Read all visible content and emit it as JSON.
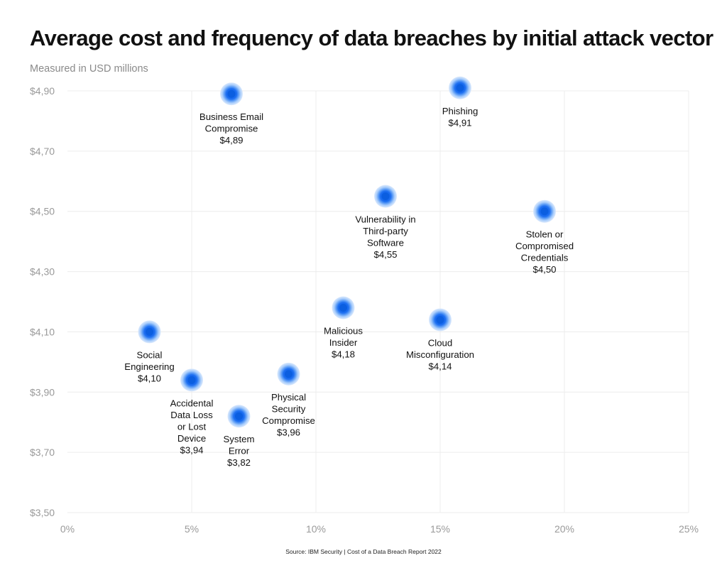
{
  "chart_data": {
    "type": "scatter",
    "title": "Average cost and frequency of data breaches by initial attack vector",
    "subtitle": "Measured in USD millions",
    "source": "Source: IBM Security | Cost of a Data Breach Report 2022",
    "xlim": [
      0,
      25
    ],
    "ylim": [
      3.5,
      4.9
    ],
    "x_ticks": [
      0,
      5,
      10,
      15,
      20,
      25
    ],
    "x_tick_labels": [
      "0%",
      "5%",
      "10%",
      "15%",
      "20%",
      "25%"
    ],
    "y_ticks": [
      3.5,
      3.7,
      3.9,
      4.1,
      4.3,
      4.5,
      4.7,
      4.9
    ],
    "y_tick_labels": [
      "$3,50",
      "$3,70",
      "$3,90",
      "$4,10",
      "$4,30",
      "$4,50",
      "$4,70",
      "$4,90"
    ],
    "grid": true,
    "marker_color": "#1a73e8",
    "points": [
      {
        "label": [
          "Business Email",
          "Compromise",
          "$4,89"
        ],
        "x": 6.6,
        "y": 4.89
      },
      {
        "label": [
          "Phishing",
          "$4,91"
        ],
        "x": 15.8,
        "y": 4.91
      },
      {
        "label": [
          "Vulnerability in",
          "Third-party",
          "Software",
          "$4,55"
        ],
        "x": 12.8,
        "y": 4.55
      },
      {
        "label": [
          "Stolen or",
          "Compromised",
          "Credentials",
          "$4,50"
        ],
        "x": 19.2,
        "y": 4.5
      },
      {
        "label": [
          "Malicious",
          "Insider",
          "$4,18"
        ],
        "x": 11.1,
        "y": 4.18
      },
      {
        "label": [
          "Cloud",
          "Misconfiguration",
          "$4,14"
        ],
        "x": 15.0,
        "y": 4.14
      },
      {
        "label": [
          "Social",
          "Engineering",
          "$4,10"
        ],
        "x": 3.3,
        "y": 4.1
      },
      {
        "label": [
          "Accidental",
          "Data Loss",
          "or Lost",
          "Device",
          "$3,94"
        ],
        "x": 5.0,
        "y": 3.94
      },
      {
        "label": [
          "Physical",
          "Security",
          "Compromise",
          "$3,96"
        ],
        "x": 8.9,
        "y": 3.96
      },
      {
        "label": [
          "System",
          "Error",
          "$3,82"
        ],
        "x": 6.9,
        "y": 3.82
      }
    ]
  }
}
